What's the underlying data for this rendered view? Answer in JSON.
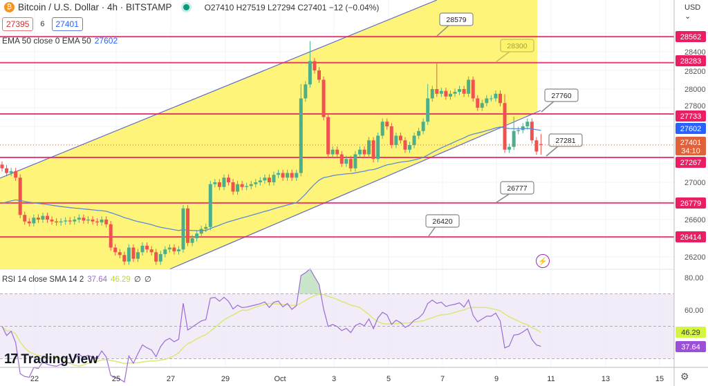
{
  "header": {
    "symbol_title": "Bitcoin / U.S. Dollar · 4h · BITSTAMP",
    "coin_icon": "bitcoin-icon",
    "ohlc": "O27410 H27519 L27294 C27401 −12 (−0.04%)",
    "sell_price": "27395",
    "spread": "6",
    "buy_price": "27401",
    "market_status_color": "#089981"
  },
  "indicators": {
    "ema_label": "EMA 50 close 0 EMA 50",
    "ema_value": "27602",
    "rsi_label": "RSI 14 close SMA 14 2",
    "rsi_value": "37.64",
    "rsi_sma_value": "46.29",
    "rsi_extra1": "∅",
    "rsi_extra2": "∅"
  },
  "axis": {
    "currency": "USD ⌄",
    "settings_icon": "gear-icon"
  },
  "branding": {
    "logo_text": "TradingView",
    "logo_mark": "17"
  },
  "colors": {
    "up": "#4caf8a",
    "down": "#ef5350",
    "ema": "#5b8bd6",
    "level": "#e91e63",
    "channel_fill": "#fff36b",
    "rsi": "#9c6ad6",
    "rsi_sma": "#dce775",
    "rsi_band": "#ede7f6"
  },
  "chart_data": {
    "type": "candlestick",
    "title": "Bitcoin / U.S. Dollar · 4h · BITSTAMP",
    "interval": "4h",
    "x_tick_labels": [
      "22",
      "25",
      "27",
      "29",
      "Oct",
      "3",
      "5",
      "7",
      "9",
      "11",
      "13",
      "15"
    ],
    "y_tick_labels": [
      "28400",
      "28200",
      "28000",
      "27800",
      "27000",
      "26600",
      "26200"
    ],
    "ylim": [
      26060,
      28780
    ],
    "last_candle": {
      "open": 27410,
      "high": 27519,
      "low": 27294,
      "close": 27401
    },
    "closes": [
      27150,
      27100,
      27120,
      27050,
      26650,
      26580,
      26560,
      26620,
      26600,
      26640,
      26600,
      26580,
      26570,
      26580,
      26590,
      26580,
      26600,
      26620,
      26590,
      26600,
      26580,
      26570,
      26600,
      26550,
      26300,
      26250,
      26220,
      26150,
      26300,
      26180,
      26250,
      26320,
      26280,
      26250,
      26150,
      26230,
      26280,
      26300,
      26260,
      26280,
      26720,
      26350,
      26400,
      26450,
      26500,
      26520,
      26980,
      27000,
      26950,
      27050,
      27000,
      26900,
      26980,
      26950,
      26960,
      26980,
      27000,
      27020,
      27050,
      27000,
      27080,
      27100,
      27050,
      27100,
      27050,
      27100,
      27900,
      28050,
      28300,
      28200,
      28100,
      27700,
      27300,
      27350,
      27300,
      27200,
      27250,
      27150,
      27300,
      27350,
      27300,
      27450,
      27250,
      27500,
      27650,
      27600,
      27400,
      27500,
      27450,
      27350,
      27400,
      27500,
      27550,
      27650,
      27900,
      28000,
      27950,
      27980,
      27920,
      27950,
      27970,
      28000,
      27950,
      28100,
      27900,
      27800,
      27850,
      27900,
      27900,
      27950,
      27850,
      27350,
      27380,
      27550,
      27560,
      27600,
      27650,
      27450,
      27330,
      27401
    ],
    "ema50_last": 27602,
    "horizontal_levels": [
      28562,
      28283,
      27733,
      27267,
      26779,
      26414
    ],
    "level_badges": [
      "28562",
      "28283",
      "27733",
      "27267",
      "26779",
      "26414"
    ],
    "current_price_badge": {
      "price": "27401",
      "countdown": "34:10"
    },
    "ema_badge": "27602",
    "annotations": [
      "28579",
      "28300",
      "27760",
      "27281",
      "26777",
      "26420"
    ],
    "channel": "ascending",
    "rsi": {
      "period": 14,
      "sma_period": 14,
      "last": 37.64,
      "sma_last": 46.29,
      "y_tick_labels": [
        "80.00",
        "60.00"
      ],
      "bands": [
        70,
        50,
        30
      ],
      "badges": [
        "46.29",
        "37.64"
      ]
    },
    "grid": true
  }
}
